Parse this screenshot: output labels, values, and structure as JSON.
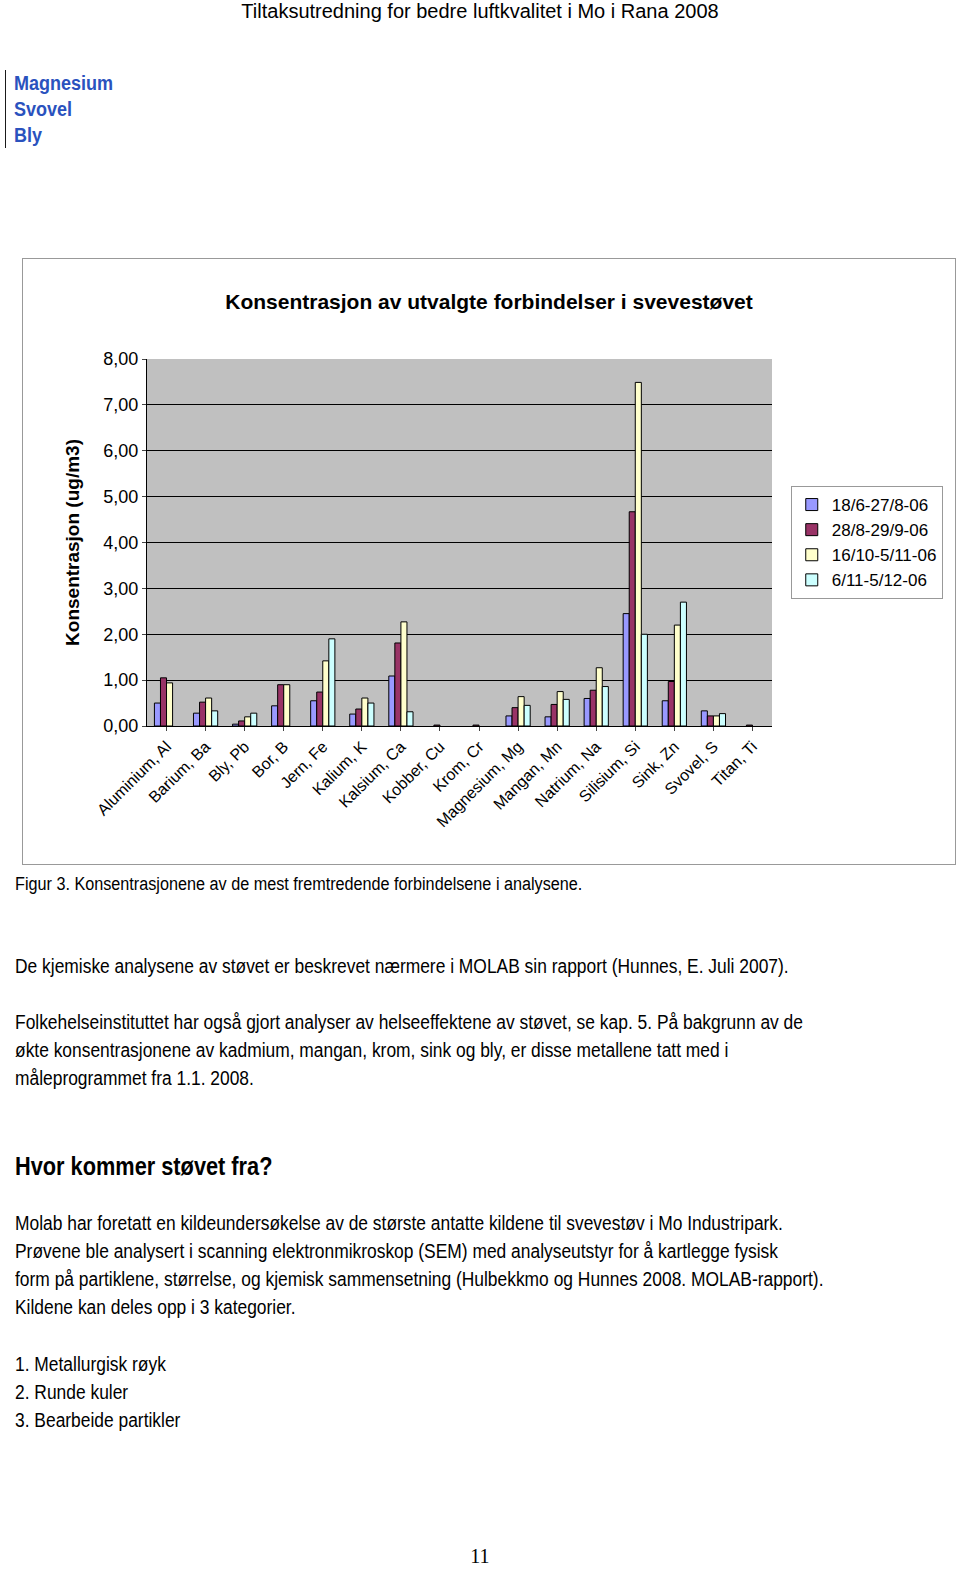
{
  "header": "Tiltaksutredning for bedre luftkvalitet i Mo i Rana 2008",
  "sidebar": [
    "Magnesium",
    "Svovel",
    "Bly"
  ],
  "chart_data": {
    "type": "bar",
    "title": "Konsentrasjon av utvalgte forbindelser i svevestøvet",
    "y_label": "Konsentrasjon (ug/m3)",
    "categories": [
      "Aluminium, Al",
      "Barium, Ba",
      "Bly, Pb",
      "Bor, B",
      "Jern, Fe",
      "Kalium, K",
      "Kalsium, Ca",
      "Kobber, Cu",
      "Krom, Cr",
      "Magnesium, Mg",
      "Mangan, Mn",
      "Natrium, Na",
      "Silisium, Si",
      "Sink, Zn",
      "Svovel, S",
      "Titan, Ti"
    ],
    "series": [
      {
        "name": "18/6-27/8-06",
        "color": "#9999FF",
        "values": [
          0.5,
          0.28,
          0.04,
          0.44,
          0.55,
          0.26,
          1.09,
          null,
          null,
          0.22,
          0.2,
          0.6,
          2.45,
          0.55,
          0.33,
          null
        ]
      },
      {
        "name": "28/8-29/9-06",
        "color": "#993366",
        "values": [
          1.05,
          0.52,
          0.11,
          0.9,
          0.74,
          0.37,
          1.81,
          0.02,
          0.02,
          0.4,
          0.47,
          0.78,
          4.67,
          0.97,
          0.22,
          0.02
        ]
      },
      {
        "name": "16/10-5/11-06",
        "color": "#FFFFCC",
        "values": [
          0.94,
          0.61,
          0.2,
          0.9,
          1.42,
          0.61,
          2.27,
          null,
          null,
          0.64,
          0.75,
          1.27,
          7.49,
          2.2,
          0.22,
          null
        ]
      },
      {
        "name": "6/11-5/12-06",
        "color": "#CCFFFF",
        "values": [
          null,
          0.33,
          0.28,
          null,
          1.9,
          0.5,
          0.31,
          null,
          null,
          0.45,
          0.58,
          0.86,
          2.0,
          2.7,
          0.27,
          null
        ]
      }
    ],
    "ylim": [
      0,
      8
    ],
    "yticks": [
      {
        "value": 0,
        "label": "0,00"
      },
      {
        "value": 1,
        "label": "1,00"
      },
      {
        "value": 2,
        "label": "2,00"
      },
      {
        "value": 3,
        "label": "3,00"
      },
      {
        "value": 4,
        "label": "4,00"
      },
      {
        "value": 5,
        "label": "5,00"
      },
      {
        "value": 6,
        "label": "6,00"
      },
      {
        "value": 7,
        "label": "7,00"
      },
      {
        "value": 8,
        "label": "8,00"
      }
    ],
    "grid": true,
    "legend": "right"
  },
  "caption": "Figur 3. Konsentrasjonene av de mest fremtredende forbindelsene i analysene.",
  "paragraphs": [
    [
      "De kjemiske analysene av støvet er beskrevet nærmere i MOLAB sin rapport  (Hunnes, E. Juli 2007)."
    ],
    [
      "Folkehelseinstituttet har også gjort analyser av helseeffektene av støvet, se kap. 5. På bakgrunn av de",
      "økte konsentrasjonene av kadmium, mangan, krom, sink og bly, er disse metallene tatt med i",
      "måleprogrammet fra 1.1. 2008."
    ]
  ],
  "heading": "Hvor kommer støvet fra?",
  "paragraphs_after": [
    [
      "Molab har foretatt en kildeundersøkelse av de største antatte kildene til svevestøv i Mo Industripark.",
      "Prøvene ble analysert i scanning elektronmikroskop (SEM) med analyseutstyr for å kartlegge fysisk",
      "form på partiklene, størrelse, og kjemisk sammensetning (Hulbekkmo og Hunnes  2008. MOLAB-rapport).",
      "Kildene kan deles opp i 3 kategorier."
    ],
    [
      "1. Metallurgisk røyk",
      "2. Runde kuler",
      "3. Bearbeide partikler"
    ]
  ],
  "page_number": "11"
}
